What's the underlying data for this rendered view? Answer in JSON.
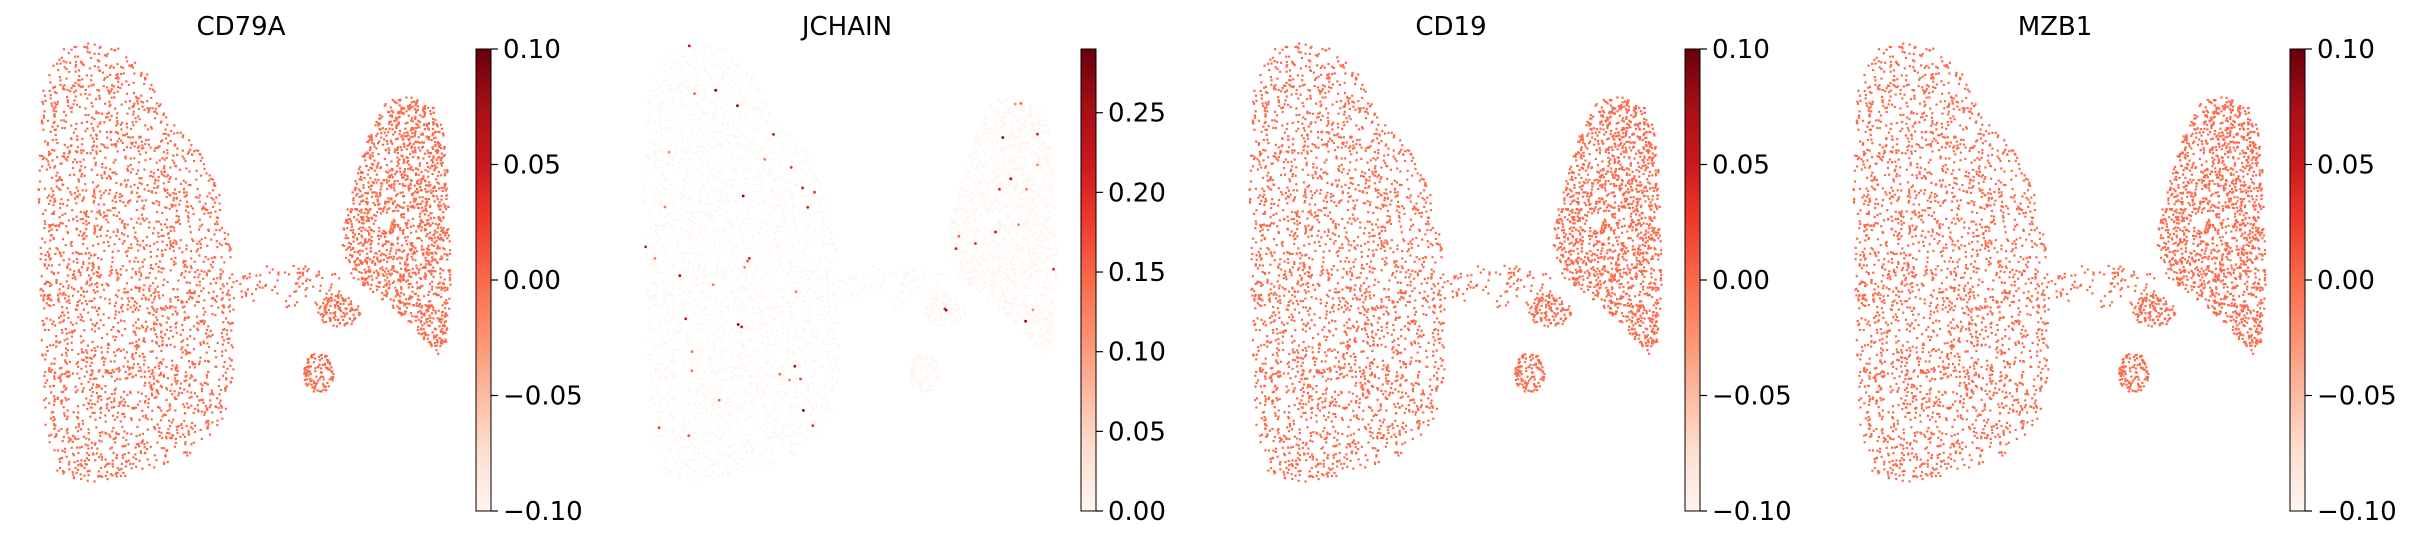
{
  "figure": {
    "panel_count": 4
  },
  "chart_data": [
    {
      "type": "scatter",
      "title": "CD79A",
      "colormap": "Reds",
      "colorbar": {
        "min": -0.1,
        "max": 0.1,
        "ticks": [
          -0.1,
          -0.05,
          0.0,
          0.05,
          0.1
        ],
        "tick_labels": [
          "−0.10",
          "−0.05",
          "0.00",
          "0.05",
          "0.10"
        ]
      },
      "point_value": 0.0,
      "expressed_fraction": 0.0,
      "grid": false,
      "axes_visible": false
    },
    {
      "type": "scatter",
      "title": "JCHAIN",
      "colormap": "Reds",
      "colorbar": {
        "min": 0.0,
        "max": 0.29,
        "ticks": [
          0.0,
          0.05,
          0.1,
          0.15,
          0.2,
          0.25
        ],
        "tick_labels": [
          "0.00",
          "0.05",
          "0.10",
          "0.15",
          "0.20",
          "0.25"
        ]
      },
      "point_value": 0.0,
      "expressed_fraction": 0.012,
      "grid": false,
      "axes_visible": false
    },
    {
      "type": "scatter",
      "title": "CD19",
      "colormap": "Reds",
      "colorbar": {
        "min": -0.1,
        "max": 0.1,
        "ticks": [
          -0.1,
          -0.05,
          0.0,
          0.05,
          0.1
        ],
        "tick_labels": [
          "−0.10",
          "−0.05",
          "0.00",
          "0.05",
          "0.10"
        ]
      },
      "point_value": 0.0,
      "expressed_fraction": 0.0,
      "grid": false,
      "axes_visible": false
    },
    {
      "type": "scatter",
      "title": "MZB1",
      "colormap": "Reds",
      "colorbar": {
        "min": -0.1,
        "max": 0.1,
        "ticks": [
          -0.1,
          -0.05,
          0.0,
          0.05,
          0.1
        ],
        "tick_labels": [
          "−0.10",
          "−0.05",
          "0.00",
          "0.05",
          "0.10"
        ]
      },
      "point_value": 0.0,
      "expressed_fraction": 0.0,
      "grid": false,
      "axes_visible": false
    }
  ]
}
